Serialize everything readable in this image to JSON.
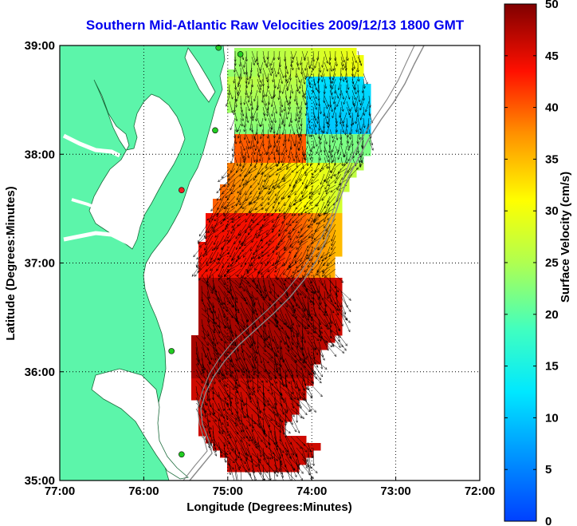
{
  "title": "Southern Mid-Atlantic Raw Velocities 2009/12/13 1800 GMT",
  "axes": {
    "xlabel": "Longitude (Degrees:Minutes)",
    "ylabel": "Latitude (Degrees:Minutes)",
    "xticks": [
      "77:00",
      "76:00",
      "75:00",
      "74:00",
      "73:00",
      "72:00"
    ],
    "yticks": [
      "39:00",
      "38:00",
      "37:00",
      "36:00",
      "35:00"
    ],
    "xlim_deg": [
      -77,
      -72
    ],
    "ylim_deg": [
      35,
      39
    ],
    "grid": "dotted"
  },
  "colorbar": {
    "label": "Surface Velocity (cm/s)",
    "ticks": [
      "50",
      "45",
      "40",
      "35",
      "30",
      "25",
      "20",
      "15",
      "10",
      "5",
      "0"
    ],
    "range": [
      0,
      50
    ],
    "colormap": "jet"
  },
  "colors": {
    "land": "#5cf5aa",
    "title": "#0000ee",
    "station_green": "#22cc22",
    "station_red": "#ee2222"
  },
  "stations": [
    {
      "lon": -75.11,
      "lat": 38.98,
      "color": "green"
    },
    {
      "lon": -74.85,
      "lat": 38.92,
      "color": "green"
    },
    {
      "lon": -75.15,
      "lat": 38.22,
      "color": "green"
    },
    {
      "lon": -75.55,
      "lat": 37.67,
      "color": "red"
    },
    {
      "lon": -75.67,
      "lat": 36.19,
      "color": "green"
    },
    {
      "lon": -75.55,
      "lat": 35.24,
      "color": "green"
    }
  ]
}
